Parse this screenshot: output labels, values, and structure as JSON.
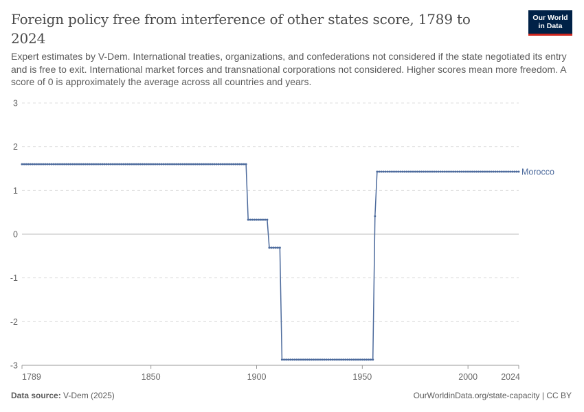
{
  "header": {
    "title": "Foreign policy free from interference of other states score, 1789 to 2024",
    "subtitle": "Expert estimates by V-Dem. International treaties, organizations, and confederations not considered if the state negotiated its entry and is free to exit. International market forces and transnational corporations not considered. Higher scores mean more freedom. A score of 0 is approximately the average across all countries and years.",
    "logo_line1": "Our World",
    "logo_line2": "in Data"
  },
  "footer": {
    "source_label": "Data source:",
    "source_value": "V-Dem (2025)",
    "link": "OurWorldinData.org/state-capacity | CC BY"
  },
  "colors": {
    "series": "#4c6a9c",
    "grid": "#dddddd",
    "zero_line": "#bdbdbd",
    "axis_text": "#666666"
  },
  "chart_data": {
    "type": "line",
    "title": "Foreign policy free from interference of other states score, 1789 to 2024",
    "xlabel": "",
    "ylabel": "",
    "xlim": [
      1789,
      2024
    ],
    "ylim": [
      -3,
      3
    ],
    "x_ticks": [
      1789,
      1850,
      1900,
      1950,
      2000,
      2024
    ],
    "y_ticks": [
      -3,
      -2,
      -1,
      0,
      1,
      2,
      3
    ],
    "grid": "horizontal dashed",
    "legend": "end-of-line label",
    "series": [
      {
        "name": "Morocco",
        "segments": [
          {
            "from": 1789,
            "to": 1895,
            "value": 1.6
          },
          {
            "from": 1896,
            "to": 1905,
            "value": 0.33
          },
          {
            "from": 1906,
            "to": 1911,
            "value": -0.31
          },
          {
            "from": 1912,
            "to": 1955,
            "value": -2.87
          },
          {
            "from": 1956,
            "to": 1956,
            "value": 0.41
          },
          {
            "from": 1957,
            "to": 2024,
            "value": 1.43
          }
        ]
      }
    ]
  }
}
